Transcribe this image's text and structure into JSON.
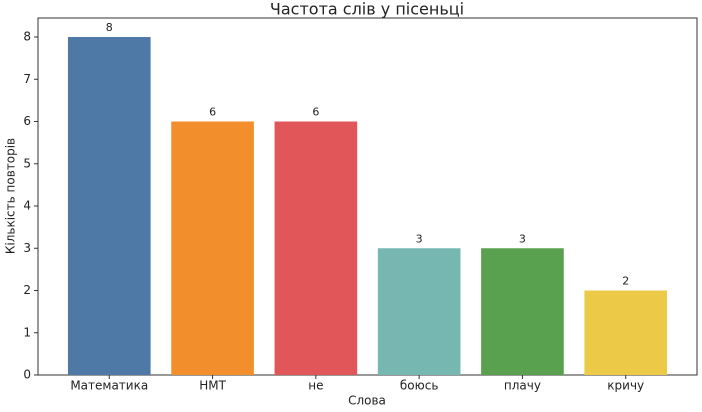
{
  "chart_data": {
    "type": "bar",
    "title": "Частота слів у пісеньці",
    "x_label": "Слова",
    "y_label": "Кількість повторів",
    "categories": [
      "Математика",
      "НМТ",
      "не",
      "боюсь",
      "плачу",
      "кричу"
    ],
    "values": [
      8,
      6,
      6,
      3,
      3,
      2
    ],
    "colors": [
      "#4e79a7",
      "#f28e2b",
      "#e15759",
      "#76b7b2",
      "#59a14f",
      "#edc948"
    ],
    "ylim": [
      0,
      8.45
    ],
    "yticks": [
      0,
      1,
      2,
      3,
      4,
      5,
      6,
      7,
      8
    ],
    "grid": false
  }
}
